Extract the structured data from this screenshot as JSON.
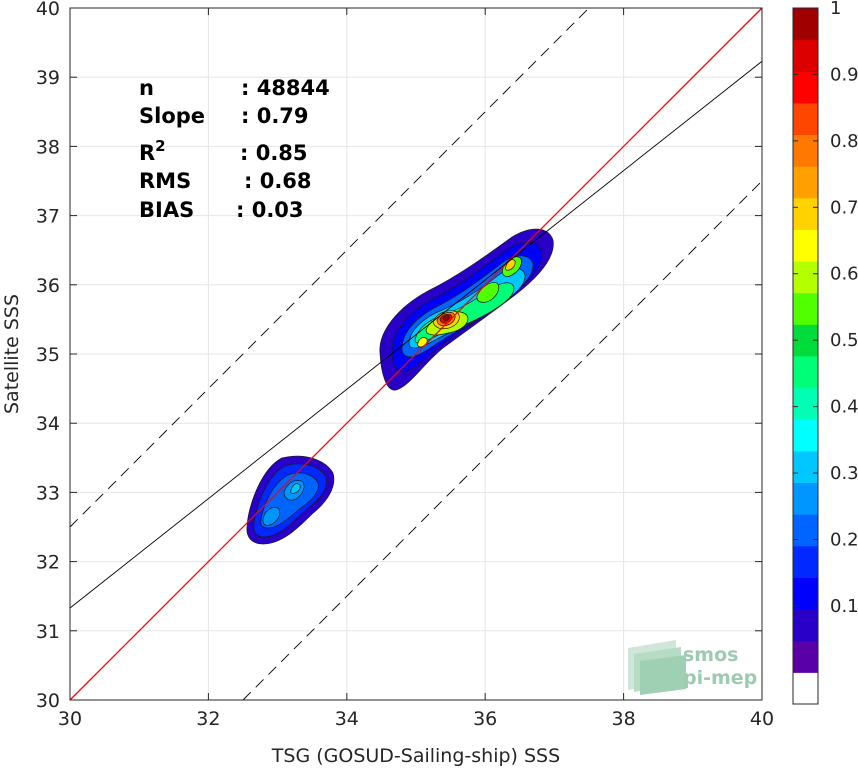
{
  "chart_data": {
    "type": "contour-density-scatter",
    "xlabel": "TSG (GOSUD-Sailing-ship) SSS",
    "ylabel": "Satellite SSS",
    "xlim": [
      30,
      40
    ],
    "ylim": [
      30,
      40
    ],
    "xticks": [
      30,
      32,
      34,
      36,
      38,
      40
    ],
    "yticks": [
      30,
      31,
      32,
      33,
      34,
      35,
      36,
      37,
      38,
      39,
      40
    ],
    "grid": true,
    "stats": [
      {
        "label": "n",
        "value": ": 48844"
      },
      {
        "label": "Slope",
        "value": ": 0.79"
      },
      {
        "label": "R",
        "sup": "2",
        "value": ": 0.85"
      },
      {
        "label": "RMS",
        "value": ": 0.68"
      },
      {
        "label": "BIAS",
        "value": ": 0.03"
      }
    ],
    "reference_lines": [
      {
        "name": "identity",
        "slope": 1.0,
        "intercept": 0.0,
        "color": "#ff0000",
        "style": "solid"
      },
      {
        "name": "regression",
        "slope": 0.79,
        "intercept": 7.63,
        "color": "#000000",
        "style": "solid"
      },
      {
        "name": "upper-bound",
        "slope": 1.0,
        "intercept": 2.5,
        "color": "#000000",
        "style": "dashed"
      },
      {
        "name": "lower-bound",
        "slope": 1.0,
        "intercept": -2.5,
        "color": "#000000",
        "style": "dashed"
      }
    ],
    "density_clusters": [
      {
        "name": "cluster-low",
        "center": [
          33.1,
          32.9
        ],
        "peak": 0.35
      },
      {
        "name": "cluster-high",
        "center": [
          35.7,
          35.6
        ],
        "peak": 1.0
      }
    ],
    "colorbar": {
      "min": 0,
      "max": 1,
      "ticks": [
        "1",
        "0.9",
        "0.8",
        "0.7",
        "0.6",
        "0.5",
        "0.4",
        "0.3",
        "0.2",
        "0.1"
      ],
      "colors": [
        "#ffffff",
        "#5a00a8",
        "#2800c8",
        "#0000ff",
        "#0028ff",
        "#0064ff",
        "#0096ff",
        "#00c8ff",
        "#00ffff",
        "#00ffb4",
        "#00ff78",
        "#00dc3c",
        "#50ff00",
        "#b4ff00",
        "#ffff00",
        "#ffd200",
        "#ffa000",
        "#ff7800",
        "#ff4600",
        "#ff0000",
        "#dc0000",
        "#a00000"
      ]
    }
  },
  "logo": {
    "line1": "smos",
    "line2": "pi-mep"
  }
}
